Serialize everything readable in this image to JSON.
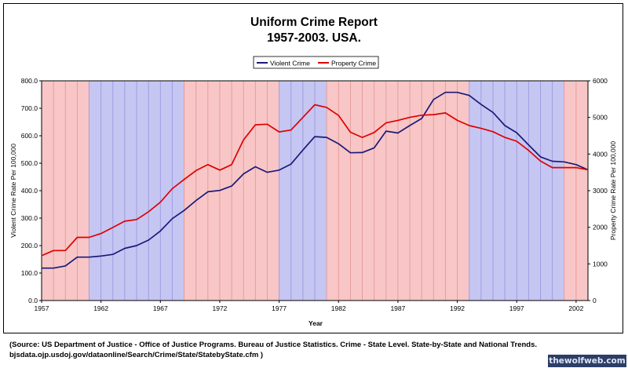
{
  "chart_data": {
    "type": "line",
    "title": "Uniform Crime Report",
    "subtitle": "1957-2003. USA.",
    "xlabel": "Year",
    "ylabel_left": "Violent Crime Rate Per 100,000",
    "ylabel_right": "Property Crime Rate Per 100,000",
    "xlim": [
      1957,
      2003
    ],
    "ylim_left": [
      0,
      800
    ],
    "ylim_right": [
      0,
      6000
    ],
    "x_ticks": [
      1957,
      1962,
      1967,
      1972,
      1977,
      1982,
      1987,
      1992,
      1997,
      2002
    ],
    "y_ticks_left": [
      "0.0",
      "100.0",
      "200.0",
      "300.0",
      "400.0",
      "500.0",
      "600.0",
      "700.0",
      "800.0"
    ],
    "y_ticks_right": [
      "0",
      "1000",
      "2000",
      "3000",
      "4000",
      "5000",
      "6000"
    ],
    "legend_position": "top-center",
    "grid": true,
    "x": [
      1957,
      1958,
      1959,
      1960,
      1961,
      1962,
      1963,
      1964,
      1965,
      1966,
      1967,
      1968,
      1969,
      1970,
      1971,
      1972,
      1973,
      1974,
      1975,
      1976,
      1977,
      1978,
      1979,
      1980,
      1981,
      1982,
      1983,
      1984,
      1985,
      1986,
      1987,
      1988,
      1989,
      1990,
      1991,
      1992,
      1993,
      1994,
      1995,
      1996,
      1997,
      1998,
      1999,
      2000,
      2001,
      2002,
      2003
    ],
    "series": [
      {
        "name": "Violent Crime",
        "axis": "left",
        "color": "#1a1a7a",
        "values": [
          118,
          118,
          126,
          158,
          158,
          162,
          168,
          190,
          200,
          220,
          253,
          298,
          328,
          364,
          396,
          401,
          417,
          461,
          487,
          467,
          475,
          497,
          548,
          597,
          594,
          571,
          538,
          539,
          556,
          617,
          610,
          637,
          663,
          732,
          758,
          758,
          747,
          714,
          685,
          637,
          611,
          567,
          523,
          507,
          505,
          495,
          476
        ]
      },
      {
        "name": "Property Crime",
        "axis": "left",
        "color": "#e00000",
        "values": [
          163,
          182,
          182,
          230,
          230,
          244,
          266,
          289,
          295,
          323,
          358,
          407,
          441,
          473,
          495,
          475,
          495,
          585,
          640,
          642,
          614,
          621,
          667,
          713,
          703,
          674,
          613,
          594,
          612,
          647,
          656,
          667,
          675,
          677,
          683,
          656,
          637,
          627,
          615,
          594,
          580,
          547,
          508,
          484,
          484,
          484,
          476
        ]
      }
    ],
    "bands": [
      {
        "from": 1953,
        "to": 1961,
        "party": "R",
        "color": "#f8c6c6"
      },
      {
        "from": 1961,
        "to": 1969,
        "party": "D",
        "color": "#c6c6f2"
      },
      {
        "from": 1969,
        "to": 1977,
        "party": "R",
        "color": "#f8c6c6"
      },
      {
        "from": 1977,
        "to": 1981,
        "party": "D",
        "color": "#c6c6f2"
      },
      {
        "from": 1981,
        "to": 1993,
        "party": "R",
        "color": "#f8c6c6"
      },
      {
        "from": 1993,
        "to": 2001,
        "party": "D",
        "color": "#c6c6f2"
      },
      {
        "from": 2001,
        "to": 2004,
        "party": "R",
        "color": "#f8c6c6"
      }
    ]
  },
  "source_note": {
    "line1": "(Source: US Department of Justice - Office of Justice Programs. Bureau of Justice Statistics. Crime - State Level. State-by-State and National Trends.",
    "line2": "bjsdata.ojp.usdoj.gov/dataonline/Search/Crime/State/StatebyState.cfm )"
  },
  "watermark": "thewolfweb.com"
}
